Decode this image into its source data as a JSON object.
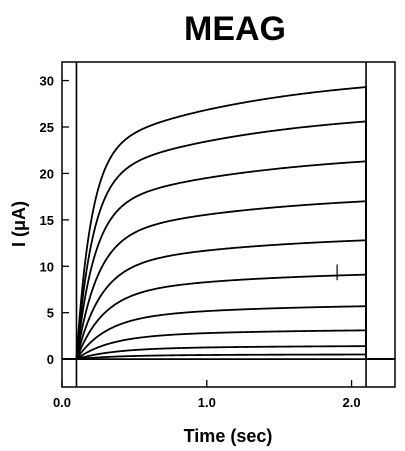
{
  "chart_data": {
    "type": "line",
    "title": "MEAG",
    "xlabel": "Time (sec)",
    "ylabel": "I (μA)",
    "xlim": [
      0.0,
      2.3
    ],
    "ylim": [
      -3,
      32
    ],
    "x_ticks": [
      0.0,
      1.0,
      2.0
    ],
    "x_tick_labels": [
      "0.0",
      "1.0",
      "2.0"
    ],
    "y_ticks": [
      0,
      5,
      10,
      15,
      20,
      25,
      30
    ],
    "y_tick_labels": [
      "0",
      "5",
      "10",
      "15",
      "20",
      "25",
      "30"
    ],
    "pulse_on_sec": 0.1,
    "pulse_off_sec": 2.1,
    "grid": false,
    "series": [
      {
        "steady_state": 29.3,
        "tau_fast": 0.1,
        "fast_fraction": 0.72,
        "tau_slow": 1.2
      },
      {
        "steady_state": 25.6,
        "tau_fast": 0.11,
        "fast_fraction": 0.72,
        "tau_slow": 1.2
      },
      {
        "steady_state": 21.3,
        "tau_fast": 0.12,
        "fast_fraction": 0.72,
        "tau_slow": 1.2
      },
      {
        "steady_state": 17.0,
        "tau_fast": 0.14,
        "fast_fraction": 0.72,
        "tau_slow": 1.2
      },
      {
        "steady_state": 12.8,
        "tau_fast": 0.16,
        "fast_fraction": 0.72,
        "tau_slow": 1.2
      },
      {
        "steady_state": 9.1,
        "tau_fast": 0.18,
        "fast_fraction": 0.72,
        "tau_slow": 1.2
      },
      {
        "steady_state": 5.7,
        "tau_fast": 0.2,
        "fast_fraction": 0.72,
        "tau_slow": 1.2
      },
      {
        "steady_state": 3.1,
        "tau_fast": 0.22,
        "fast_fraction": 0.72,
        "tau_slow": 1.2
      },
      {
        "steady_state": 1.4,
        "tau_fast": 0.24,
        "fast_fraction": 0.72,
        "tau_slow": 1.2
      },
      {
        "steady_state": 0.5,
        "tau_fast": 0.26,
        "fast_fraction": 0.72,
        "tau_slow": 1.2
      },
      {
        "steady_state": 0.0,
        "tau_fast": 0.26,
        "fast_fraction": 0.72,
        "tau_slow": 1.2
      }
    ],
    "scale_bar": {
      "x": 1.9,
      "y_top": 10.2,
      "y_bottom": 8.5
    }
  }
}
